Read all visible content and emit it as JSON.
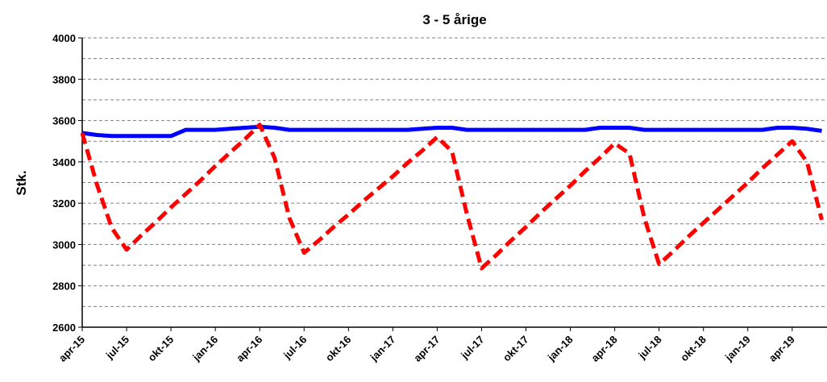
{
  "chart_data": {
    "type": "line",
    "title": "3 - 5 årige",
    "y_label": "Stk.",
    "categories": [
      "apr-15",
      null,
      null,
      "jul-15",
      null,
      null,
      "okt-15",
      null,
      null,
      "jan-16",
      null,
      null,
      "apr-16",
      null,
      null,
      "jul-16",
      null,
      null,
      "okt-16",
      null,
      null,
      "jan-17",
      null,
      null,
      "apr-17",
      null,
      null,
      "jul-17",
      null,
      null,
      "okt-17",
      null,
      null,
      "jan-18",
      null,
      null,
      "apr-18",
      null,
      null,
      "jul-18",
      null,
      null,
      "okt-18",
      null,
      null,
      "jan-19",
      null,
      null,
      "apr-19",
      null,
      null
    ],
    "series": [
      {
        "color": "#0000ff",
        "dashed": false,
        "values": [
          3540,
          3530,
          3525,
          3525,
          3525,
          3525,
          3525,
          3555,
          3555,
          3555,
          3560,
          3565,
          3570,
          3565,
          3555,
          3555,
          3555,
          3555,
          3555,
          3555,
          3555,
          3555,
          3555,
          3560,
          3565,
          3565,
          3555,
          3555,
          3555,
          3555,
          3555,
          3555,
          3555,
          3555,
          3555,
          3565,
          3565,
          3565,
          3555,
          3555,
          3555,
          3555,
          3555,
          3555,
          3555,
          3555,
          3555,
          3565,
          3565,
          3560,
          3550
        ]
      },
      {
        "color": "#ff0000",
        "dashed": true,
        "values": [
          3540,
          3290,
          3080,
          2975,
          3045,
          3110,
          3180,
          3245,
          3310,
          3380,
          3445,
          3510,
          3580,
          3420,
          3130,
          2960,
          3020,
          3085,
          3145,
          3210,
          3270,
          3330,
          3395,
          3455,
          3520,
          3450,
          3150,
          2885,
          2950,
          3020,
          3085,
          3155,
          3220,
          3285,
          3355,
          3420,
          3490,
          3440,
          3130,
          2905,
          2970,
          3040,
          3105,
          3170,
          3235,
          3300,
          3370,
          3435,
          3500,
          3400,
          3120
        ]
      }
    ],
    "ylim": [
      2600,
      4000
    ],
    "yticks": [
      2600,
      2800,
      3000,
      3200,
      3400,
      3600,
      3800,
      4000
    ],
    "minor_yticks": [
      2700,
      2900,
      3100,
      3300,
      3500,
      3700,
      3900
    ],
    "grid": true
  }
}
